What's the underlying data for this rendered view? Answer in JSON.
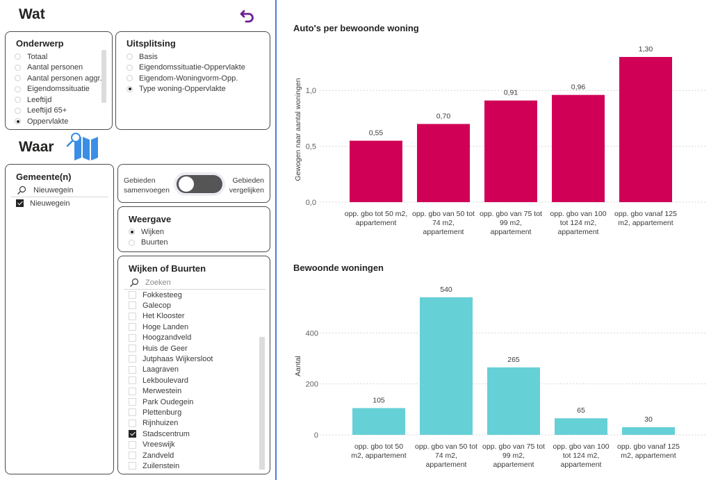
{
  "wat": {
    "title": "Wat",
    "undo_icon": "undo-arrow-icon",
    "onderwerp": {
      "title": "Onderwerp",
      "options": [
        {
          "label": "Totaal",
          "selected": false
        },
        {
          "label": "Aantal personen",
          "selected": false
        },
        {
          "label": "Aantal personen aggr.",
          "selected": false
        },
        {
          "label": "Eigendomssituatie",
          "selected": false
        },
        {
          "label": "Leeftijd",
          "selected": false
        },
        {
          "label": "Leeftijd 65+",
          "selected": false
        },
        {
          "label": "Oppervlakte",
          "selected": true
        }
      ]
    },
    "uitsplitsing": {
      "title": "Uitsplitsing",
      "options": [
        {
          "label": "Basis",
          "selected": false
        },
        {
          "label": "Eigendomssituatie-Oppervlakte",
          "selected": false
        },
        {
          "label": "Eigendom-Woningvorm-Opp.",
          "selected": false
        },
        {
          "label": "Type woning-Oppervlakte",
          "selected": true
        }
      ]
    }
  },
  "waar": {
    "title": "Waar",
    "map_icon": "map-search-icon",
    "gemeente": {
      "title": "Gemeente(n)",
      "search_value": "Nieuwegein",
      "items": [
        {
          "label": "Nieuwegein",
          "checked": true
        }
      ]
    },
    "toggle": {
      "left_label_1": "Gebieden",
      "left_label_2": "samenvoegen",
      "right_label_1": "Gebieden",
      "right_label_2": "vergelijken",
      "state": "samenvoegen"
    },
    "weergave": {
      "title": "Weergave",
      "options": [
        {
          "label": "Wijken",
          "selected": true
        },
        {
          "label": "Buurten",
          "selected": false
        }
      ]
    },
    "wijken": {
      "title": "Wijken of Buurten",
      "search_placeholder": "Zoeken",
      "items": [
        {
          "label": "Fokkesteeg",
          "checked": false
        },
        {
          "label": "Galecop",
          "checked": false
        },
        {
          "label": "Het Klooster",
          "checked": false
        },
        {
          "label": "Hoge Landen",
          "checked": false
        },
        {
          "label": "Hoogzandveld",
          "checked": false
        },
        {
          "label": "Huis de Geer",
          "checked": false
        },
        {
          "label": "Jutphaas Wijkersloot",
          "checked": false
        },
        {
          "label": "Laagraven",
          "checked": false
        },
        {
          "label": "Lekboulevard",
          "checked": false
        },
        {
          "label": "Merwestein",
          "checked": false
        },
        {
          "label": "Park Oudegein",
          "checked": false
        },
        {
          "label": "Plettenburg",
          "checked": false
        },
        {
          "label": "Rijnhuizen",
          "checked": false
        },
        {
          "label": "Stadscentrum",
          "checked": true
        },
        {
          "label": "Vreeswijk",
          "checked": false
        },
        {
          "label": "Zandveld",
          "checked": false
        },
        {
          "label": "Zuilenstein",
          "checked": false
        }
      ]
    }
  },
  "colors": {
    "accent_purple": "#6b1f8f",
    "divider_blue": "#4a7fd0",
    "map_blue": "#3a8ee6",
    "bar_magenta": "#d10057",
    "bar_cyan": "#66d0d7",
    "toggle_dark": "#555555"
  },
  "chart_data": [
    {
      "type": "bar",
      "title": "Auto's per bewoonde woning",
      "xlabel": "",
      "ylabel": "Gewogen naar aantal woningen",
      "categories": [
        [
          "opp. gbo tot 50 m2,",
          "appartement"
        ],
        [
          "opp. gbo van 50 tot",
          "74 m2,",
          "appartement"
        ],
        [
          "opp. gbo van 75 tot",
          "99 m2,",
          "appartement"
        ],
        [
          "opp. gbo van 100",
          "tot 124 m2,",
          "appartement"
        ],
        [
          "opp. gbo vanaf 125",
          "m2, appartement"
        ]
      ],
      "values": [
        0.55,
        0.7,
        0.91,
        0.96,
        1.3
      ],
      "data_labels": [
        "0,55",
        "0,70",
        "0,91",
        "0,96",
        "1,30"
      ],
      "yticks": [
        0,
        0.5,
        1.0
      ],
      "ytick_labels": [
        "0,0",
        "0,5",
        "1,0"
      ],
      "ylim": [
        0,
        1.3
      ],
      "grid": true,
      "color": "#d10057"
    },
    {
      "type": "bar",
      "title": "Bewoonde woningen",
      "xlabel": "",
      "ylabel": "Aantal",
      "categories": [
        [
          "opp. gbo tot 50",
          "m2, appartement"
        ],
        [
          "opp. gbo van 50 tot",
          "74 m2,",
          "appartement"
        ],
        [
          "opp. gbo van 75 tot",
          "99 m2,",
          "appartement"
        ],
        [
          "opp. gbo van 100",
          "tot 124 m2,",
          "appartement"
        ],
        [
          "opp. gbo vanaf 125",
          "m2, appartement"
        ]
      ],
      "values": [
        105,
        540,
        265,
        65,
        30
      ],
      "data_labels": [
        "105",
        "540",
        "265",
        "65",
        "30"
      ],
      "yticks": [
        0,
        200,
        400
      ],
      "ytick_labels": [
        "0",
        "200",
        "400"
      ],
      "ylim": [
        0,
        540
      ],
      "grid": true,
      "color": "#66d0d7"
    }
  ]
}
